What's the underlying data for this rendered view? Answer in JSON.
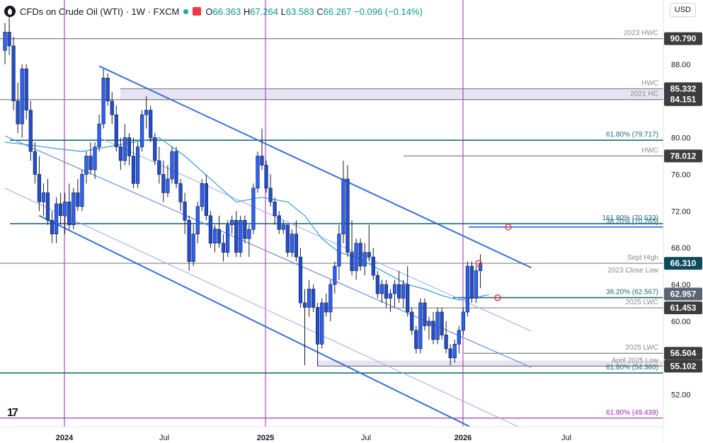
{
  "header": {
    "title": "CFDs on Crude Oil (WTI) · 1W · FXCM",
    "open_label": "O",
    "open": "66.363",
    "high_label": "H",
    "high": "67.264",
    "low_label": "L",
    "low": "63.583",
    "close_label": "C",
    "close": "66.267",
    "change": "−0.096 (−0.14%)",
    "currency": "USD"
  },
  "colors": {
    "up": "#2962ff",
    "down": "#2962ff",
    "channel": "#3a6fd8",
    "inner_channel": "#8fb0ea",
    "horizontal_dark": "#808080",
    "horizontal_teal": "#1e6b76",
    "vertical": "#9c27b0",
    "ma": "#3b98e0",
    "zone": "#e6e4f2",
    "price_tag": "#3d3d3d",
    "current": "#0e4b5a"
  },
  "chart_data": {
    "type": "candlestick",
    "instrument": "CFDs on Crude Oil (WTI)",
    "timeframe": "1W",
    "ylim": [
      48.5,
      93
    ],
    "x_axis_labels": [
      "2024",
      "Jul",
      "2025",
      "Jul",
      "2026",
      "Jul"
    ],
    "y_axis_ticks": [
      52,
      56,
      60,
      64,
      68,
      72,
      76,
      80,
      84,
      88
    ],
    "price_tags": [
      {
        "value": 90.79,
        "label": "90.790"
      },
      {
        "value": 85.332,
        "label": "85.332"
      },
      {
        "value": 84.151,
        "label": "84.151"
      },
      {
        "value": 78.012,
        "label": "78.012"
      },
      {
        "value": 66.31,
        "label": "66.310"
      },
      {
        "value": 62.957,
        "label": "62.957"
      },
      {
        "value": 61.453,
        "label": "61.453"
      },
      {
        "value": 56.504,
        "label": "56.504"
      },
      {
        "value": 55.102,
        "label": "55.102"
      }
    ],
    "levels": [
      {
        "value": 90.79,
        "label": "2023 HWC",
        "style": "dark"
      },
      {
        "value": 85.332,
        "label": "HWC",
        "style": "dark"
      },
      {
        "value": 84.151,
        "label": "2021 HC",
        "style": "dark"
      },
      {
        "value": 79.717,
        "label": "61.80% (79.717)",
        "style": "teal"
      },
      {
        "value": 78.012,
        "label": "HWC",
        "style": "dark"
      },
      {
        "value": 70.265,
        "label": "38.20% (70.265)",
        "style": "blue"
      },
      {
        "value": 70.633,
        "label": "161.80% (70.633)",
        "style": "teal"
      },
      {
        "value": 66.31,
        "label": "Sept High",
        "style": "dark"
      },
      {
        "value": 66.31,
        "label": "2023 Close Low",
        "style": "dark"
      },
      {
        "value": 62.567,
        "label": "38.20% (62.567)",
        "style": "teal"
      },
      {
        "value": 61.453,
        "label": "2025 LWC",
        "style": "dark"
      },
      {
        "value": 56.504,
        "label": "2025 LWC",
        "style": "dark"
      },
      {
        "value": 55.102,
        "label": "April 2025 Low",
        "style": "dark"
      },
      {
        "value": 54.36,
        "label": "61.80% (54.360)",
        "style": "teal"
      },
      {
        "value": 49.439,
        "label": "61.80% (49.439)",
        "style": "purple"
      }
    ],
    "zones": [
      {
        "from": 84.151,
        "to": 85.332
      },
      {
        "from": 55.102,
        "to": 55.7
      }
    ],
    "vertical_markers": [
      "2024",
      "2025",
      "2026"
    ],
    "candles": [
      [
        89.5,
        92.5,
        88.0,
        91.5
      ],
      [
        91.5,
        93.5,
        89.0,
        90.0
      ],
      [
        90.0,
        91.0,
        83.0,
        84.0
      ],
      [
        84.0,
        86.0,
        80.5,
        81.5
      ],
      [
        81.5,
        88.0,
        80.0,
        87.5
      ],
      [
        87.5,
        88.0,
        82.0,
        83.0
      ],
      [
        83.0,
        84.0,
        77.5,
        78.5
      ],
      [
        78.5,
        79.5,
        75.0,
        76.0
      ],
      [
        76.0,
        78.0,
        72.0,
        73.0
      ],
      [
        73.0,
        75.0,
        71.5,
        74.0
      ],
      [
        74.0,
        75.5,
        70.5,
        71.0
      ],
      [
        71.0,
        72.0,
        68.5,
        69.5
      ],
      [
        69.5,
        73.5,
        68.5,
        72.8
      ],
      [
        72.8,
        74.0,
        70.5,
        71.5
      ],
      [
        71.5,
        74.0,
        69.5,
        73.0
      ],
      [
        73.0,
        75.0,
        70.0,
        70.5
      ],
      [
        70.5,
        74.5,
        70.0,
        74.0
      ],
      [
        74.0,
        75.5,
        72.0,
        72.5
      ],
      [
        72.5,
        76.5,
        72.0,
        76.0
      ],
      [
        76.0,
        78.5,
        75.0,
        78.0
      ],
      [
        78.0,
        79.5,
        76.0,
        76.5
      ],
      [
        76.5,
        79.5,
        75.5,
        79.0
      ],
      [
        79.0,
        82.5,
        78.5,
        81.5
      ],
      [
        81.5,
        87.5,
        81.0,
        86.5
      ],
      [
        86.5,
        87.0,
        83.5,
        84.0
      ],
      [
        84.0,
        85.0,
        81.5,
        82.5
      ],
      [
        82.5,
        83.5,
        78.5,
        79.0
      ],
      [
        79.0,
        80.0,
        76.5,
        77.5
      ],
      [
        77.5,
        81.5,
        77.0,
        80.0
      ],
      [
        80.0,
        80.5,
        77.0,
        78.0
      ],
      [
        78.0,
        80.0,
        74.5,
        75.0
      ],
      [
        75.0,
        79.5,
        74.5,
        79.0
      ],
      [
        79.0,
        83.0,
        78.5,
        82.5
      ],
      [
        82.5,
        84.5,
        81.0,
        83.0
      ],
      [
        83.0,
        83.5,
        79.5,
        80.0
      ],
      [
        80.0,
        80.5,
        77.0,
        77.5
      ],
      [
        77.5,
        79.0,
        75.0,
        76.0
      ],
      [
        76.0,
        77.5,
        73.0,
        74.0
      ],
      [
        74.0,
        77.0,
        73.5,
        75.5
      ],
      [
        75.5,
        79.0,
        75.0,
        78.5
      ],
      [
        78.5,
        79.0,
        74.5,
        75.0
      ],
      [
        75.0,
        75.5,
        72.0,
        73.0
      ],
      [
        73.0,
        74.0,
        69.5,
        71.0
      ],
      [
        71.0,
        71.5,
        65.5,
        66.5
      ],
      [
        66.5,
        70.5,
        66.0,
        69.5
      ],
      [
        69.5,
        73.0,
        68.5,
        72.5
      ],
      [
        72.5,
        75.5,
        72.0,
        75.0
      ],
      [
        75.0,
        76.0,
        71.0,
        71.5
      ],
      [
        71.5,
        72.0,
        68.0,
        68.5
      ],
      [
        68.5,
        70.5,
        67.5,
        70.0
      ],
      [
        70.0,
        71.5,
        68.0,
        68.5
      ],
      [
        68.5,
        69.5,
        66.5,
        67.5
      ],
      [
        67.5,
        71.0,
        67.0,
        70.5
      ],
      [
        70.5,
        71.5,
        69.5,
        71.0
      ],
      [
        71.0,
        72.0,
        67.0,
        67.5
      ],
      [
        67.5,
        71.5,
        67.0,
        71.0
      ],
      [
        71.0,
        71.5,
        68.5,
        69.0
      ],
      [
        69.0,
        70.5,
        67.0,
        70.0
      ],
      [
        70.0,
        75.0,
        69.5,
        74.5
      ],
      [
        74.5,
        78.5,
        74.0,
        78.0
      ],
      [
        78.0,
        81.0,
        76.5,
        77.0
      ],
      [
        77.0,
        77.5,
        74.0,
        74.5
      ],
      [
        74.5,
        76.0,
        72.5,
        73.0
      ],
      [
        73.0,
        73.5,
        70.5,
        71.5
      ],
      [
        71.5,
        72.0,
        69.5,
        70.0
      ],
      [
        70.0,
        71.0,
        69.5,
        70.5
      ],
      [
        70.5,
        70.5,
        67.0,
        67.5
      ],
      [
        67.5,
        70.0,
        67.0,
        69.5
      ],
      [
        69.5,
        71.0,
        66.5,
        67.0
      ],
      [
        67.0,
        68.0,
        61.5,
        62.0
      ],
      [
        62.0,
        63.5,
        55.2,
        61.5
      ],
      [
        61.5,
        64.5,
        60.5,
        63.5
      ],
      [
        63.5,
        64.0,
        61.0,
        61.5
      ],
      [
        61.5,
        62.0,
        55.1,
        57.5
      ],
      [
        57.5,
        62.5,
        57.0,
        62.0
      ],
      [
        62.0,
        63.0,
        60.5,
        61.0
      ],
      [
        61.0,
        64.5,
        60.0,
        64.0
      ],
      [
        64.0,
        66.5,
        63.0,
        66.0
      ],
      [
        66.0,
        70.5,
        64.5,
        69.5
      ],
      [
        69.5,
        77.5,
        68.5,
        75.5
      ],
      [
        75.5,
        77.0,
        67.0,
        67.5
      ],
      [
        67.5,
        71.0,
        65.0,
        65.5
      ],
      [
        65.5,
        69.0,
        64.5,
        68.5
      ],
      [
        68.5,
        69.0,
        65.5,
        66.0
      ],
      [
        66.0,
        68.5,
        65.0,
        67.5
      ],
      [
        67.5,
        70.5,
        66.5,
        67.0
      ],
      [
        67.0,
        68.0,
        64.5,
        65.0
      ],
      [
        65.0,
        65.5,
        62.5,
        63.0
      ],
      [
        63.0,
        64.5,
        62.0,
        64.0
      ],
      [
        64.0,
        64.5,
        61.5,
        62.5
      ],
      [
        62.5,
        63.5,
        61.0,
        63.0
      ],
      [
        63.0,
        64.5,
        61.5,
        64.0
      ],
      [
        64.0,
        65.5,
        62.0,
        62.5
      ],
      [
        62.5,
        64.5,
        61.5,
        64.0
      ],
      [
        64.0,
        66.0,
        60.5,
        61.0
      ],
      [
        61.0,
        61.5,
        58.5,
        59.0
      ],
      [
        59.0,
        59.5,
        56.5,
        57.0
      ],
      [
        57.0,
        62.5,
        56.5,
        62.0
      ],
      [
        62.0,
        62.5,
        59.0,
        59.5
      ],
      [
        59.5,
        60.5,
        58.0,
        60.0
      ],
      [
        60.0,
        61.0,
        57.5,
        58.0
      ],
      [
        58.0,
        61.5,
        57.5,
        61.0
      ],
      [
        61.0,
        61.5,
        58.0,
        58.5
      ],
      [
        58.5,
        60.0,
        56.5,
        57.0
      ],
      [
        57.0,
        57.5,
        55.2,
        56.0
      ],
      [
        56.0,
        58.0,
        55.5,
        57.5
      ],
      [
        57.5,
        59.5,
        56.5,
        59.0
      ],
      [
        59.0,
        61.5,
        58.5,
        61.0
      ],
      [
        61.0,
        66.5,
        60.5,
        66.0
      ],
      [
        66.0,
        66.5,
        62.0,
        62.5
      ],
      [
        62.5,
        66.0,
        62.0,
        65.5
      ],
      [
        65.5,
        67.3,
        63.6,
        66.3
      ]
    ],
    "moving_average": [
      [
        0,
        79.5
      ],
      [
        6,
        79.2
      ],
      [
        12,
        78.8
      ],
      [
        18,
        78.5
      ],
      [
        24,
        79.0
      ],
      [
        30,
        79.5
      ],
      [
        36,
        80.0
      ],
      [
        42,
        78.0
      ],
      [
        48,
        75.5
      ],
      [
        54,
        73.0
      ],
      [
        60,
        73.5
      ],
      [
        66,
        73.0
      ],
      [
        70,
        71.5
      ],
      [
        74,
        69.0
      ],
      [
        78,
        67.5
      ],
      [
        82,
        67.0
      ],
      [
        86,
        66.0
      ],
      [
        90,
        65.0
      ],
      [
        94,
        64.0
      ],
      [
        98,
        63.5
      ],
      [
        102,
        62.8
      ],
      [
        106,
        62.3
      ],
      [
        110,
        62.6
      ],
      [
        113,
        62.9
      ]
    ],
    "channels": [
      {
        "x1": 22,
        "y1": 87.8,
        "x2": 113,
        "y2": 68.0,
        "weight": "outer"
      },
      {
        "x1": 8,
        "y1": 71.5,
        "x2": 113,
        "y2": 47.5,
        "weight": "outer"
      },
      {
        "x1": 0,
        "y1": 80.2,
        "x2": 113,
        "y2": 57.0,
        "weight": "mid"
      },
      {
        "x1": 22,
        "y1": 80.0,
        "x2": 113,
        "y2": 61.0,
        "weight": "inner"
      },
      {
        "x1": 0,
        "y1": 74.5,
        "x2": 113,
        "y2": 50.0,
        "weight": "inner"
      }
    ]
  }
}
